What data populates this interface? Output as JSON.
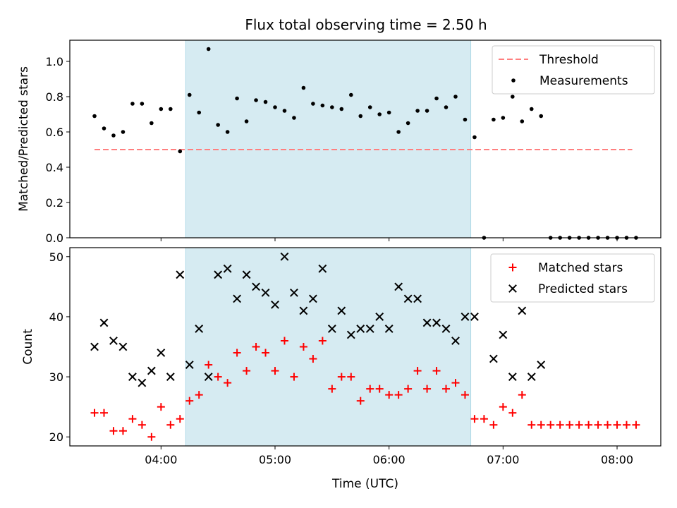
{
  "colors": {
    "shade": "#add8e6",
    "threshold": "#ff7f7f",
    "measurement": "#000000",
    "matched": "#ff0000",
    "predicted": "#000000"
  },
  "chart_data": {
    "title": "Flux total observing time = 2.50 h",
    "x_axis": {
      "label": "Time (UTC)",
      "ticks": [
        "04:00",
        "05:00",
        "06:00",
        "07:00",
        "08:00"
      ],
      "range": [
        "03:12",
        "08:23"
      ]
    },
    "shaded_interval": [
      "04:13",
      "06:43"
    ],
    "top": {
      "type": "scatter",
      "ylabel": "Matched/Predicted stars",
      "ylim": [
        0,
        1.12
      ],
      "yticks": [
        "0.0",
        "0.2",
        "0.4",
        "0.6",
        "0.8",
        "1.0"
      ],
      "legend_position": "upper right",
      "threshold": {
        "name": "Threshold",
        "value": 0.5,
        "x_range": [
          "03:25",
          "08:08"
        ]
      },
      "measurements_name": "Measurements",
      "points": [
        [
          "03:25",
          0.69
        ],
        [
          "03:30",
          0.62
        ],
        [
          "03:35",
          0.58
        ],
        [
          "03:40",
          0.6
        ],
        [
          "03:45",
          0.76
        ],
        [
          "03:50",
          0.76
        ],
        [
          "03:55",
          0.65
        ],
        [
          "04:00",
          0.73
        ],
        [
          "04:05",
          0.73
        ],
        [
          "04:10",
          0.49
        ],
        [
          "04:15",
          0.81
        ],
        [
          "04:20",
          0.71
        ],
        [
          "04:25",
          1.07
        ],
        [
          "04:30",
          0.64
        ],
        [
          "04:35",
          0.6
        ],
        [
          "04:40",
          0.79
        ],
        [
          "04:45",
          0.66
        ],
        [
          "04:50",
          0.78
        ],
        [
          "04:55",
          0.77
        ],
        [
          "05:00",
          0.74
        ],
        [
          "05:05",
          0.72
        ],
        [
          "05:10",
          0.68
        ],
        [
          "05:15",
          0.85
        ],
        [
          "05:20",
          0.76
        ],
        [
          "05:25",
          0.75
        ],
        [
          "05:30",
          0.74
        ],
        [
          "05:35",
          0.73
        ],
        [
          "05:40",
          0.81
        ],
        [
          "05:45",
          0.69
        ],
        [
          "05:50",
          0.74
        ],
        [
          "05:55",
          0.7
        ],
        [
          "06:00",
          0.71
        ],
        [
          "06:05",
          0.6
        ],
        [
          "06:10",
          0.65
        ],
        [
          "06:15",
          0.72
        ],
        [
          "06:20",
          0.72
        ],
        [
          "06:25",
          0.79
        ],
        [
          "06:30",
          0.74
        ],
        [
          "06:35",
          0.8
        ],
        [
          "06:40",
          0.67
        ],
        [
          "06:45",
          0.57
        ],
        [
          "06:50",
          0.0
        ],
        [
          "06:55",
          0.67
        ],
        [
          "07:00",
          0.68
        ],
        [
          "07:05",
          0.8
        ],
        [
          "07:10",
          0.66
        ],
        [
          "07:15",
          0.73
        ],
        [
          "07:20",
          0.69
        ],
        [
          "07:25",
          0.0
        ],
        [
          "07:30",
          0.0
        ],
        [
          "07:35",
          0.0
        ],
        [
          "07:40",
          0.0
        ],
        [
          "07:45",
          0.0
        ],
        [
          "07:50",
          0.0
        ],
        [
          "07:55",
          0.0
        ],
        [
          "08:00",
          0.0
        ],
        [
          "08:05",
          0.0
        ],
        [
          "08:10",
          0.0
        ]
      ]
    },
    "bottom": {
      "type": "scatter",
      "ylabel": "Count",
      "ylim": [
        18.5,
        51.5
      ],
      "yticks": [
        "20",
        "30",
        "40",
        "50"
      ],
      "legend_position": "upper right",
      "series": [
        {
          "name": "Matched stars",
          "marker": "+",
          "points": [
            [
              "03:25",
              24
            ],
            [
              "03:30",
              24
            ],
            [
              "03:35",
              21
            ],
            [
              "03:40",
              21
            ],
            [
              "03:45",
              23
            ],
            [
              "03:50",
              22
            ],
            [
              "03:55",
              20
            ],
            [
              "04:00",
              25
            ],
            [
              "04:05",
              22
            ],
            [
              "04:10",
              23
            ],
            [
              "04:15",
              26
            ],
            [
              "04:20",
              27
            ],
            [
              "04:25",
              32
            ],
            [
              "04:30",
              30
            ],
            [
              "04:35",
              29
            ],
            [
              "04:40",
              34
            ],
            [
              "04:45",
              31
            ],
            [
              "04:50",
              35
            ],
            [
              "04:55",
              34
            ],
            [
              "05:00",
              31
            ],
            [
              "05:05",
              36
            ],
            [
              "05:10",
              30
            ],
            [
              "05:15",
              35
            ],
            [
              "05:20",
              33
            ],
            [
              "05:25",
              36
            ],
            [
              "05:30",
              28
            ],
            [
              "05:35",
              30
            ],
            [
              "05:40",
              30
            ],
            [
              "05:45",
              26
            ],
            [
              "05:50",
              28
            ],
            [
              "05:55",
              28
            ],
            [
              "06:00",
              27
            ],
            [
              "06:05",
              27
            ],
            [
              "06:10",
              28
            ],
            [
              "06:15",
              31
            ],
            [
              "06:20",
              28
            ],
            [
              "06:25",
              31
            ],
            [
              "06:30",
              28
            ],
            [
              "06:35",
              29
            ],
            [
              "06:40",
              27
            ],
            [
              "06:45",
              23
            ],
            [
              "06:50",
              23
            ],
            [
              "06:55",
              22
            ],
            [
              "07:00",
              25
            ],
            [
              "07:05",
              24
            ],
            [
              "07:10",
              27
            ],
            [
              "07:15",
              22
            ],
            [
              "07:20",
              22
            ],
            [
              "07:25",
              22
            ],
            [
              "07:30",
              22
            ],
            [
              "07:35",
              22
            ],
            [
              "07:40",
              22
            ],
            [
              "07:45",
              22
            ],
            [
              "07:50",
              22
            ],
            [
              "07:55",
              22
            ],
            [
              "08:00",
              22
            ],
            [
              "08:05",
              22
            ],
            [
              "08:10",
              22
            ]
          ]
        },
        {
          "name": "Predicted stars",
          "marker": "x",
          "points": [
            [
              "03:25",
              35
            ],
            [
              "03:30",
              39
            ],
            [
              "03:35",
              36
            ],
            [
              "03:40",
              35
            ],
            [
              "03:45",
              30
            ],
            [
              "03:50",
              29
            ],
            [
              "03:55",
              31
            ],
            [
              "04:00",
              34
            ],
            [
              "04:05",
              30
            ],
            [
              "04:10",
              47
            ],
            [
              "04:15",
              32
            ],
            [
              "04:20",
              38
            ],
            [
              "04:25",
              30
            ],
            [
              "04:30",
              47
            ],
            [
              "04:35",
              48
            ],
            [
              "04:40",
              43
            ],
            [
              "04:45",
              47
            ],
            [
              "04:50",
              45
            ],
            [
              "04:55",
              44
            ],
            [
              "05:00",
              42
            ],
            [
              "05:05",
              50
            ],
            [
              "05:10",
              44
            ],
            [
              "05:15",
              41
            ],
            [
              "05:20",
              43
            ],
            [
              "05:25",
              48
            ],
            [
              "05:30",
              38
            ],
            [
              "05:35",
              41
            ],
            [
              "05:40",
              37
            ],
            [
              "05:45",
              38
            ],
            [
              "05:50",
              38
            ],
            [
              "05:55",
              40
            ],
            [
              "06:00",
              38
            ],
            [
              "06:05",
              45
            ],
            [
              "06:10",
              43
            ],
            [
              "06:15",
              43
            ],
            [
              "06:20",
              39
            ],
            [
              "06:25",
              39
            ],
            [
              "06:30",
              38
            ],
            [
              "06:35",
              36
            ],
            [
              "06:40",
              40
            ],
            [
              "06:45",
              40
            ],
            [
              "06:55",
              33
            ],
            [
              "07:00",
              37
            ],
            [
              "07:05",
              30
            ],
            [
              "07:10",
              41
            ],
            [
              "07:15",
              30
            ],
            [
              "07:20",
              32
            ]
          ]
        }
      ]
    }
  }
}
